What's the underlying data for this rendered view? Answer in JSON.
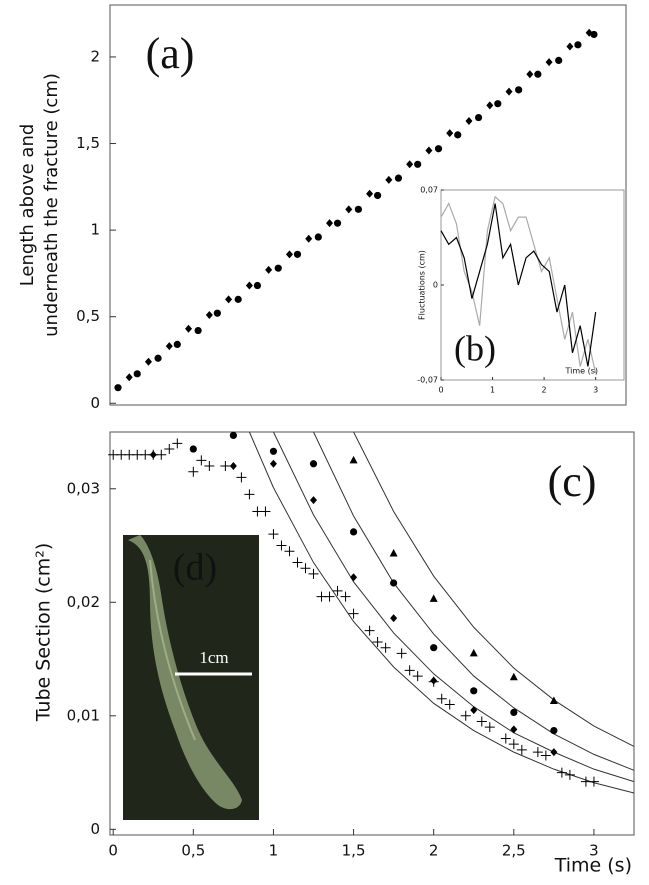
{
  "chart_data": [
    {
      "type": "scatter",
      "label": "(a)",
      "ylabel": [
        "Length above and",
        "underneath the fracture (cm)"
      ],
      "xlim": [
        -0.02,
        3.2
      ],
      "ylim": [
        -0.01,
        2.3
      ],
      "yticks": [
        0,
        {
          "value": 0.5,
          "label": "0,5"
        },
        1,
        {
          "value": 1.5,
          "label": "1,5"
        },
        2
      ],
      "series": [
        {
          "marker": "circle",
          "color": "#000",
          "x": [
            0.03,
            0.15,
            0.28,
            0.4,
            0.53,
            0.65,
            0.78,
            0.9,
            1.03,
            1.15,
            1.28,
            1.4,
            1.53,
            1.65,
            1.78,
            1.9,
            2.03,
            2.15,
            2.28,
            2.4,
            2.53,
            2.65,
            2.78,
            2.9,
            3.0
          ],
          "values": [
            0.09,
            0.17,
            0.26,
            0.34,
            0.42,
            0.52,
            0.6,
            0.68,
            0.78,
            0.86,
            0.96,
            1.04,
            1.12,
            1.2,
            1.3,
            1.38,
            1.47,
            1.55,
            1.65,
            1.73,
            1.81,
            1.9,
            1.98,
            2.07,
            2.13
          ]
        },
        {
          "marker": "diamond",
          "color": "#000",
          "x": [
            0.1,
            0.22,
            0.35,
            0.47,
            0.6,
            0.72,
            0.85,
            0.97,
            1.1,
            1.22,
            1.35,
            1.47,
            1.6,
            1.72,
            1.85,
            1.97,
            2.1,
            2.22,
            2.35,
            2.47,
            2.6,
            2.72,
            2.85,
            2.97
          ],
          "values": [
            0.15,
            0.24,
            0.33,
            0.43,
            0.51,
            0.6,
            0.68,
            0.77,
            0.86,
            0.95,
            1.04,
            1.12,
            1.21,
            1.29,
            1.38,
            1.46,
            1.56,
            1.63,
            1.72,
            1.8,
            1.9,
            1.97,
            2.06,
            2.14
          ]
        }
      ]
    },
    {
      "type": "line",
      "label": "(b)",
      "ylabel": "Fluctuations (cm)",
      "xlabel": "Time (s)",
      "xlim": [
        0,
        3.55
      ],
      "ylim": [
        -0.07,
        0.07
      ],
      "xticks": [
        0,
        1,
        2,
        3
      ],
      "yticks": [
        {
          "value": -0.07,
          "label": "-0,07"
        },
        0,
        {
          "value": 0.07,
          "label": "0,07"
        }
      ],
      "x": [
        0,
        0.15,
        0.3,
        0.45,
        0.6,
        0.75,
        0.9,
        1.05,
        1.2,
        1.35,
        1.5,
        1.65,
        1.8,
        1.95,
        2.1,
        2.25,
        2.4,
        2.55,
        2.7,
        2.85,
        3.0
      ],
      "series": [
        {
          "color": "#aaaaaa",
          "values": [
            0.05,
            0.06,
            0.045,
            0.01,
            -0.005,
            -0.03,
            0.04,
            0.065,
            0.06,
            0.04,
            0.05,
            0.05,
            0.03,
            0.01,
            0.02,
            -0.01,
            -0.04,
            -0.02,
            -0.06,
            -0.04,
            -0.065
          ]
        },
        {
          "color": "#000000",
          "values": [
            0.04,
            0.03,
            0.035,
            0.02,
            -0.01,
            0.01,
            0.03,
            0.06,
            0.02,
            0.03,
            0.0,
            0.02,
            0.025,
            0.015,
            0.01,
            -0.02,
            0.0,
            -0.05,
            -0.03,
            -0.06,
            -0.02
          ]
        }
      ]
    },
    {
      "type": "scatter",
      "label": "(c)",
      "ylabel": "Tube Section (cm²)",
      "xlabel": "Time (s)",
      "photo_label": "(d)",
      "scale_bar": "1cm",
      "xlim": [
        -0.02,
        3.25
      ],
      "ylim": [
        -0.0005,
        0.035
      ],
      "xticks": [
        0,
        {
          "value": 0.5,
          "label": "0,5"
        },
        1,
        {
          "value": 1.5,
          "label": "1,5"
        },
        2,
        {
          "value": 2.5,
          "label": "2,5"
        },
        3
      ],
      "yticks": [
        0,
        {
          "value": 0.01,
          "label": "0,01"
        },
        {
          "value": 0.02,
          "label": "0,02"
        },
        {
          "value": 0.03,
          "label": "0,03"
        }
      ],
      "series": [
        {
          "marker": "plus",
          "color": "#000",
          "x": [
            0,
            0.05,
            0.1,
            0.15,
            0.2,
            0.25,
            0.3,
            0.35,
            0.4,
            0.5,
            0.55,
            0.6,
            0.7,
            0.8,
            0.85,
            0.9,
            0.95,
            1.0,
            1.05,
            1.1,
            1.15,
            1.2,
            1.25,
            1.3,
            1.35,
            1.4,
            1.45,
            1.5,
            1.6,
            1.65,
            1.7,
            1.8,
            1.85,
            1.9,
            2.0,
            2.05,
            2.1,
            2.2,
            2.3,
            2.35,
            2.45,
            2.5,
            2.55,
            2.65,
            2.7,
            2.8,
            2.85,
            2.95,
            3.0
          ],
          "values": [
            0.033,
            0.033,
            0.033,
            0.033,
            0.033,
            0.033,
            0.033,
            0.0335,
            0.034,
            0.0315,
            0.0325,
            0.032,
            0.032,
            0.031,
            0.0295,
            0.028,
            0.028,
            0.026,
            0.025,
            0.0245,
            0.0235,
            0.023,
            0.0225,
            0.0205,
            0.0205,
            0.021,
            0.0205,
            0.019,
            0.0175,
            0.0165,
            0.016,
            0.0155,
            0.014,
            0.0135,
            0.013,
            0.0115,
            0.011,
            0.01,
            0.0095,
            0.009,
            0.008,
            0.0075,
            0.007,
            0.0068,
            0.0065,
            0.005,
            0.0048,
            0.0042,
            0.0042
          ]
        },
        {
          "marker": "diamond",
          "color": "#000",
          "x": [
            0.25,
            0.75,
            1.0,
            1.25,
            1.5,
            1.75,
            2.0,
            2.25,
            2.5,
            2.75
          ],
          "values": [
            0.033,
            0.032,
            0.0322,
            0.029,
            0.0222,
            0.0186,
            0.0131,
            0.0105,
            0.0088,
            0.0068
          ]
        },
        {
          "marker": "circle",
          "color": "#000",
          "x": [
            0.5,
            0.75,
            1.0,
            1.25,
            1.5,
            1.75,
            2.0,
            2.25,
            2.5,
            2.75
          ],
          "values": [
            0.0335,
            0.0347,
            0.0333,
            0.0322,
            0.0262,
            0.0217,
            0.016,
            0.0122,
            0.0103,
            0.0087
          ]
        },
        {
          "marker": "triangle",
          "color": "#000",
          "x": [
            1.5,
            1.75,
            2.0,
            2.25,
            2.5,
            2.75
          ],
          "values": [
            0.0325,
            0.0243,
            0.0203,
            0.0155,
            0.0134,
            0.0113
          ]
        }
      ],
      "fits": [
        {
          "color": "#333",
          "x": [
            0.85,
            1.0,
            1.25,
            1.5,
            1.75,
            2.0,
            2.25,
            2.5,
            2.75,
            3.0,
            3.25
          ],
          "values": [
            0.035,
            0.0301,
            0.0235,
            0.0183,
            0.0143,
            0.0111,
            0.0087,
            0.0068,
            0.0053,
            0.0041,
            0.0032
          ]
        },
        {
          "color": "#333",
          "x": [
            1.0,
            1.25,
            1.5,
            1.75,
            2.0,
            2.25,
            2.5,
            2.75,
            3.0,
            3.25
          ],
          "values": [
            0.035,
            0.0277,
            0.0218,
            0.0173,
            0.0137,
            0.0108,
            0.0085,
            0.0068,
            0.0053,
            0.0042
          ]
        },
        {
          "color": "#333",
          "x": [
            1.25,
            1.5,
            1.75,
            2.0,
            2.25,
            2.5,
            2.75,
            3.0,
            3.25
          ],
          "values": [
            0.035,
            0.0276,
            0.0217,
            0.0172,
            0.0135,
            0.0107,
            0.0084,
            0.0066,
            0.0052
          ]
        },
        {
          "color": "#333",
          "x": [
            1.5,
            1.75,
            2.0,
            2.25,
            2.5,
            2.75,
            3.0,
            3.25
          ],
          "values": [
            0.035,
            0.028,
            0.0223,
            0.0178,
            0.0142,
            0.0114,
            0.0091,
            0.0073
          ]
        }
      ]
    }
  ]
}
